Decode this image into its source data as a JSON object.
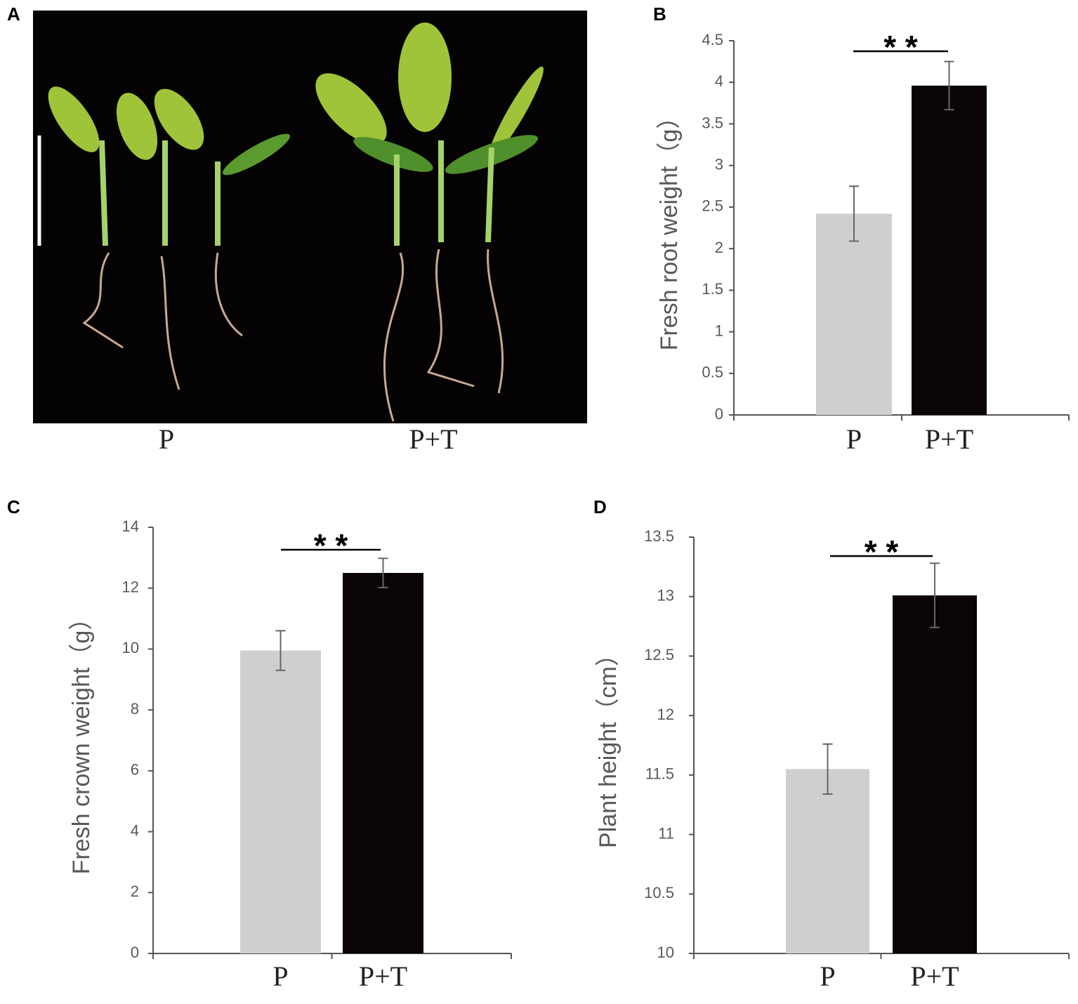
{
  "photo": {
    "panel_label": "A",
    "labels": [
      "P",
      "P+T"
    ]
  },
  "chart_data": [
    {
      "type": "bar",
      "panel_label": "B",
      "y_label": "Fresh root weight（g）",
      "categories": [
        "P",
        "P+T"
      ],
      "values": [
        2.42,
        3.96
      ],
      "errors": [
        0.33,
        0.29
      ],
      "colors": [
        "#d0cece",
        "#0a0405"
      ],
      "ylim": [
        0,
        4.5
      ],
      "yticks": [
        0,
        0.5,
        1,
        1.5,
        2,
        2.5,
        3,
        3.5,
        4,
        4.5
      ],
      "annotation": "* *"
    },
    {
      "type": "bar",
      "panel_label": "C",
      "y_label": "Fresh crown weight（g）",
      "categories": [
        "P",
        "P+T"
      ],
      "values": [
        9.95,
        12.5
      ],
      "errors": [
        0.65,
        0.48
      ],
      "colors": [
        "#d0cece",
        "#0a0405"
      ],
      "ylim": [
        0,
        14
      ],
      "yticks": [
        0,
        2,
        4,
        6,
        8,
        10,
        12,
        14
      ],
      "annotation": "* *"
    },
    {
      "type": "bar",
      "panel_label": "D",
      "y_label": "Plant height（cm）",
      "categories": [
        "P",
        "P+T"
      ],
      "values": [
        11.55,
        13.01
      ],
      "errors": [
        0.21,
        0.27
      ],
      "colors": [
        "#d0cece",
        "#0a0405"
      ],
      "ylim": [
        10,
        13.5
      ],
      "yticks": [
        10,
        10.5,
        11,
        11.5,
        12,
        12.5,
        13,
        13.5
      ],
      "annotation": "* *"
    }
  ]
}
